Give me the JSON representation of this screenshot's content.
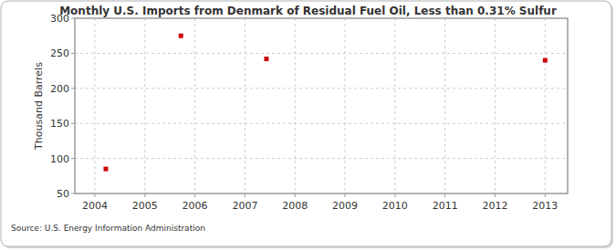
{
  "chart_data": {
    "type": "scatter",
    "title": "Monthly U.S. Imports from Denmark of Residual Fuel Oil, Less than 0.31% Sulfur",
    "y_label": "Thousand Barrels",
    "source": "Source: U.S. Energy Information Administration",
    "x": [
      2004.22,
      2005.72,
      2007.43,
      2013.0
    ],
    "values": [
      85,
      275,
      242,
      240
    ],
    "color": "#cc0000",
    "marker": "square",
    "xlim": [
      2003.6,
      2013.45
    ],
    "xticks": [
      2004,
      2005,
      2006,
      2007,
      2008,
      2009,
      2010,
      2011,
      2012,
      2013
    ],
    "ylim": [
      50,
      300
    ],
    "yticks": [
      50,
      100,
      150,
      200,
      250,
      300
    ],
    "grid": true
  }
}
